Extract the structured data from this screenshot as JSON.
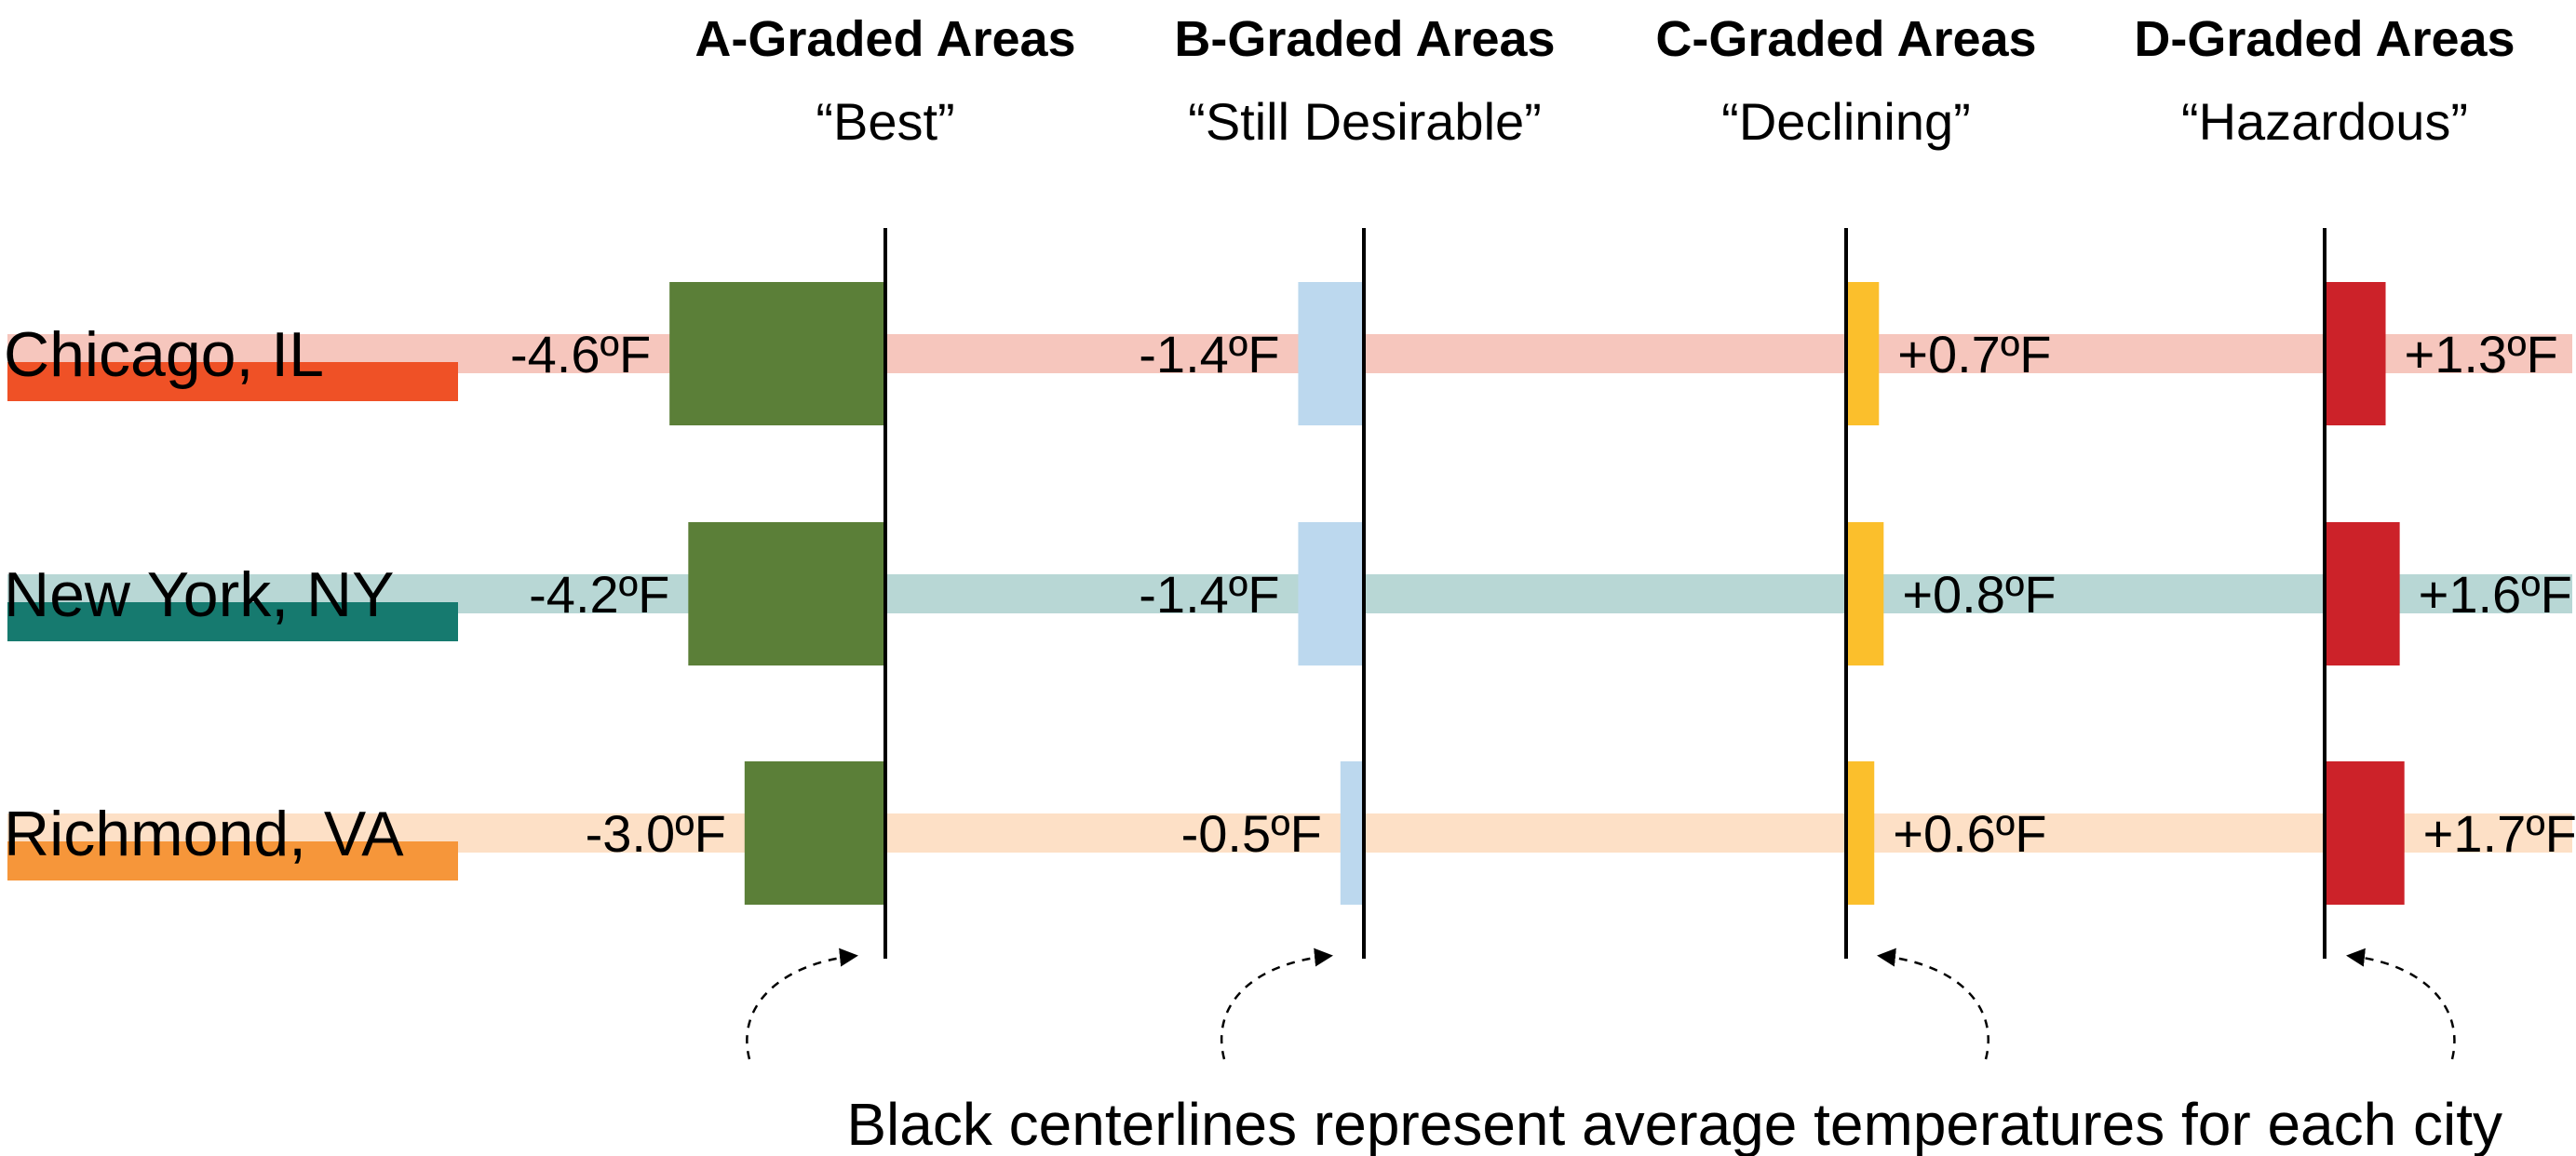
{
  "chart_data": {
    "type": "bar",
    "title": "",
    "grades": [
      {
        "label": "A-Graded Areas",
        "subtitle": "“Best”",
        "color": "#5b7f38"
      },
      {
        "label": "B-Graded Areas",
        "subtitle": "“Still Desirable”",
        "color": "#bcd8ee"
      },
      {
        "label": "C-Graded Areas",
        "subtitle": "“Declining”",
        "color": "#fbbf2c"
      },
      {
        "label": "D-Graded Areas",
        "subtitle": "“Hazardous”",
        "color": "#cc2229"
      }
    ],
    "series": [
      {
        "name": "Chicago, IL",
        "values": [
          -4.6,
          -1.4,
          0.7,
          1.3
        ],
        "labels": [
          "-4.6ºF",
          "-1.4ºF",
          "+0.7ºF",
          "+1.3ºF"
        ],
        "color": "#ef5126",
        "band_color": "#f6c6bd"
      },
      {
        "name": "New York, NY",
        "values": [
          -4.2,
          -1.4,
          0.8,
          1.6
        ],
        "labels": [
          "-4.2ºF",
          "-1.4ºF",
          "+0.8ºF",
          "+1.6ºF"
        ],
        "color": "#167a6f",
        "band_color": "#b8d7d5"
      },
      {
        "name": "Richmond, VA",
        "values": [
          -3.0,
          -0.5,
          0.6,
          1.7
        ],
        "labels": [
          "-3.0ºF",
          "-0.5ºF",
          "+0.6ºF",
          "+1.7ºF"
        ],
        "color": "#f6963a",
        "band_color": "#fde0c6"
      }
    ],
    "unit": "ºF",
    "annotation": "Black centerlines represent average temperatures for each city",
    "legend": "none",
    "grid": false
  }
}
